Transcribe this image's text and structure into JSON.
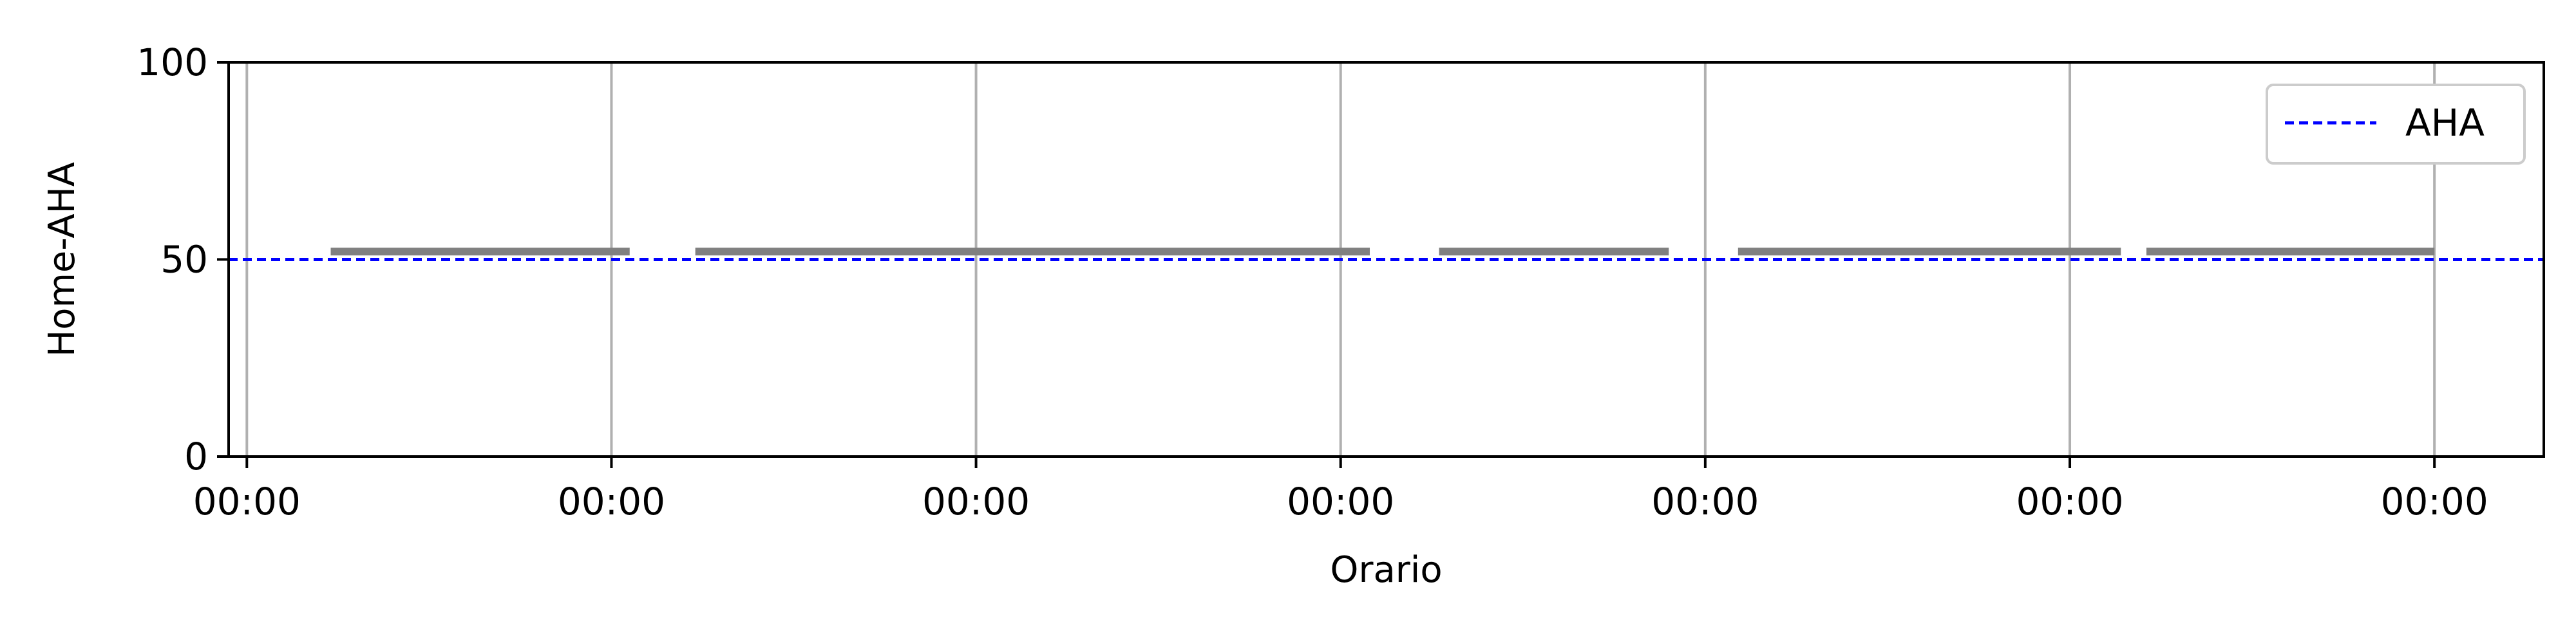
{
  "chart_data": {
    "type": "line",
    "title": "",
    "xlabel": "Orario",
    "ylabel": "Home-AHA",
    "ylim": [
      0,
      100
    ],
    "xlim": [
      -0.05,
      6.3
    ],
    "x_ticks": [
      {
        "value": 0,
        "label": "00:00"
      },
      {
        "value": 1,
        "label": "00:00"
      },
      {
        "value": 2,
        "label": "00:00"
      },
      {
        "value": 3,
        "label": "00:00"
      },
      {
        "value": 4,
        "label": "00:00"
      },
      {
        "value": 5,
        "label": "00:00"
      },
      {
        "value": 6,
        "label": "00:00"
      }
    ],
    "y_ticks": [
      {
        "value": 0,
        "label": "0"
      },
      {
        "value": 50,
        "label": "50"
      },
      {
        "value": 100,
        "label": "100"
      }
    ],
    "grid": {
      "x": true,
      "y": false
    },
    "legend": {
      "placement": "top-right",
      "entries": [
        "AHA"
      ]
    },
    "series": [
      {
        "name": "AHA",
        "style": "dashed",
        "color": "#0000ff",
        "x": [
          -0.05,
          6.3
        ],
        "values": [
          50,
          50
        ]
      }
    ],
    "segments": {
      "color": "#808080",
      "y": 52,
      "items": [
        {
          "x0": 0.23,
          "x1": 1.05
        },
        {
          "x0": 1.23,
          "x1": 3.08
        },
        {
          "x0": 3.27,
          "x1": 3.9
        },
        {
          "x0": 4.09,
          "x1": 5.14
        },
        {
          "x0": 5.21,
          "x1": 6.0
        }
      ]
    }
  }
}
